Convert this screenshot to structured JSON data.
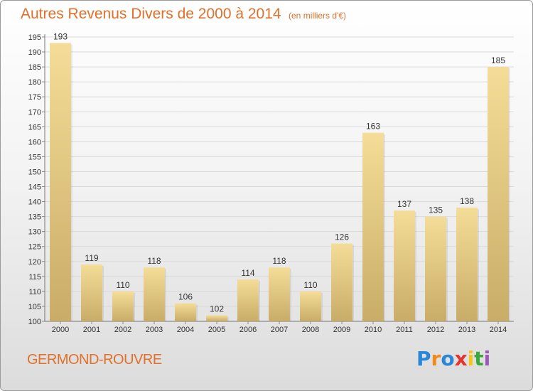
{
  "header": {
    "title": "Autres Revenus Divers de 2000 à 2014",
    "subtitle": "(en milliers d'€)"
  },
  "footer": {
    "town": "GERMOND-ROUVRE",
    "brand": "Proxiti",
    "brand_colors": [
      "#2a86d8",
      "#f08a1c",
      "#2a86d8",
      "#e2362e",
      "#f5c518",
      "#3aa83a",
      "#9b59b6"
    ]
  },
  "colors": {
    "title": "#e0702a",
    "bar_top": "#f4dd98",
    "bar_bottom": "#c8ac68",
    "grid": "#d9d9d9"
  },
  "chart_data": {
    "type": "bar",
    "title": "Autres Revenus Divers de 2000 à 2014",
    "subtitle": "(en milliers d'€)",
    "categories": [
      "2000",
      "2001",
      "2002",
      "2003",
      "2004",
      "2005",
      "2006",
      "2007",
      "2008",
      "2009",
      "2010",
      "2011",
      "2012",
      "2013",
      "2014"
    ],
    "values": [
      193,
      119,
      110,
      118,
      106,
      102,
      114,
      118,
      110,
      126,
      163,
      137,
      135,
      138,
      185
    ],
    "ylim": [
      100,
      195
    ],
    "ytick_step": 5,
    "grid": true,
    "data_labels": true
  }
}
